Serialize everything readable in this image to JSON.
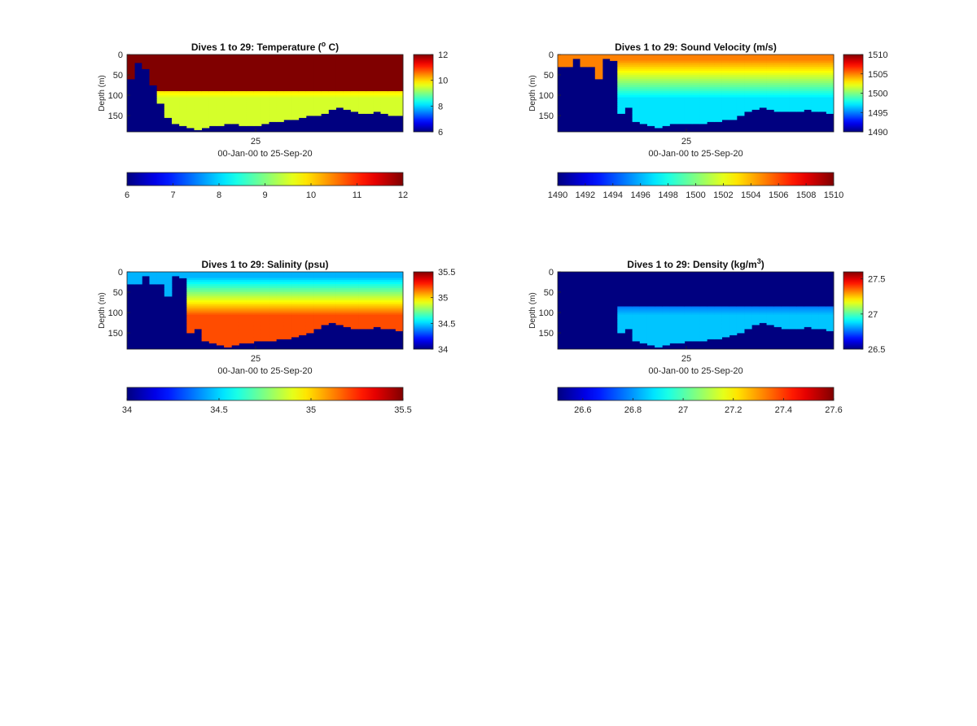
{
  "chart_data": [
    {
      "type": "heatmap",
      "title": "Dives 1 to 29: Temperature (",
      "title_sup": "o",
      "title_tail": " C)",
      "ylabel": "Depth (m)",
      "xlabel": "00-Jan-00 to 25-Sep-20",
      "x_ticks": [
        "25"
      ],
      "y_ticks": [
        "0",
        "50",
        "100",
        "150"
      ],
      "y_tick_values": [
        0,
        50,
        100,
        150
      ],
      "ylim": [
        0,
        190
      ],
      "colormap": "jet",
      "side_colorbar": {
        "range": [
          6,
          12
        ],
        "ticks": [
          "12",
          "10",
          "8",
          "6"
        ],
        "tick_values": [
          12,
          10,
          8,
          6
        ]
      },
      "bottom_colorbar": {
        "range": [
          6,
          12
        ],
        "ticks": [
          "6",
          "7",
          "8",
          "9",
          "10",
          "11",
          "12"
        ],
        "tick_values": [
          6,
          7,
          8,
          9,
          10,
          11,
          12
        ]
      },
      "columns": 37,
      "bottom_depth": [
        60,
        20,
        35,
        75,
        120,
        155,
        170,
        175,
        180,
        185,
        178,
        175,
        172,
        170,
        170,
        172,
        175,
        172,
        168,
        165,
        162,
        160,
        158,
        155,
        150,
        148,
        145,
        135,
        130,
        135,
        140,
        142,
        145,
        140,
        142,
        148,
        150
      ],
      "dive_start_column": 2,
      "surface_value": 12,
      "deep_value": 9.5
    },
    {
      "type": "heatmap",
      "title": "Dives 1 to 29: Sound Velocity (m/s)",
      "ylabel": "Depth (m)",
      "xlabel": "00-Jan-00 to 25-Sep-20",
      "x_ticks": [
        "25"
      ],
      "y_ticks": [
        "0",
        "50",
        "100",
        "150"
      ],
      "y_tick_values": [
        0,
        50,
        100,
        150
      ],
      "ylim": [
        0,
        190
      ],
      "colormap": "jet",
      "side_colorbar": {
        "range": [
          1490,
          1510
        ],
        "ticks": [
          "1510",
          "1505",
          "1500",
          "1495",
          "1490"
        ],
        "tick_values": [
          1510,
          1505,
          1500,
          1495,
          1490
        ]
      },
      "bottom_colorbar": {
        "range": [
          1490,
          1510
        ],
        "ticks": [
          "1490",
          "1492",
          "1494",
          "1496",
          "1498",
          "1500",
          "1502",
          "1504",
          "1506",
          "1508",
          "1510"
        ],
        "tick_values": [
          1490,
          1492,
          1494,
          1496,
          1498,
          1500,
          1502,
          1504,
          1506,
          1508,
          1510
        ]
      },
      "columns": 37,
      "bottom_depth": [
        30,
        30,
        10,
        28,
        28,
        60,
        10,
        15,
        145,
        130,
        165,
        170,
        175,
        180,
        172,
        170,
        168,
        168,
        170,
        168,
        165,
        162,
        160,
        158,
        150,
        140,
        135,
        130,
        135,
        140,
        140,
        138,
        140,
        135,
        138,
        140,
        142
      ],
      "dive_start_column": 8,
      "surface_value": 1505,
      "deep_value": 1497
    },
    {
      "type": "heatmap",
      "title": "Dives 1 to 29: Salinity (psu)",
      "ylabel": "Depth (m)",
      "xlabel": "00-Jan-00 to 25-Sep-20",
      "x_ticks": [
        "25"
      ],
      "y_ticks": [
        "0",
        "50",
        "100",
        "150"
      ],
      "y_tick_values": [
        0,
        50,
        100,
        150
      ],
      "ylim": [
        0,
        190
      ],
      "colormap": "jet",
      "side_colorbar": {
        "range": [
          34,
          35.5
        ],
        "ticks": [
          "35.5",
          "35",
          "34.5",
          "34"
        ],
        "tick_values": [
          35.5,
          35,
          34.5,
          34
        ]
      },
      "bottom_colorbar": {
        "range": [
          34,
          35.5
        ],
        "ticks": [
          "34",
          "34.5",
          "35",
          "35.5"
        ],
        "tick_values": [
          34,
          34.5,
          35,
          35.5
        ]
      },
      "columns": 37,
      "bottom_depth": [
        30,
        30,
        10,
        28,
        28,
        60,
        10,
        15,
        150,
        140,
        170,
        175,
        180,
        185,
        178,
        175,
        172,
        170,
        170,
        168,
        165,
        162,
        158,
        155,
        150,
        140,
        130,
        125,
        128,
        135,
        140,
        138,
        140,
        135,
        138,
        140,
        142
      ],
      "dive_start_column": 8,
      "surface_value": 34.45,
      "deep_value": 35.2
    },
    {
      "type": "heatmap",
      "title": "Dives 1 to 29: Density (kg/m",
      "title_sup": "3",
      "title_tail": ")",
      "ylabel": "Depth (m)",
      "xlabel": "00-Jan-00 to 25-Sep-20",
      "x_ticks": [
        "25"
      ],
      "y_ticks": [
        "0",
        "50",
        "100",
        "150"
      ],
      "y_tick_values": [
        0,
        50,
        100,
        150
      ],
      "ylim": [
        0,
        190
      ],
      "colormap": "jet",
      "side_colorbar": {
        "range": [
          26.5,
          27.6
        ],
        "ticks": [
          "27.5",
          "27",
          "26.5"
        ],
        "tick_values": [
          27.5,
          27,
          26.5
        ]
      },
      "bottom_colorbar": {
        "range": [
          26.5,
          27.6
        ],
        "ticks": [
          "26.6",
          "26.8",
          "27",
          "27.2",
          "27.4",
          "27.6"
        ],
        "tick_values": [
          26.6,
          26.8,
          27,
          27.2,
          27.4,
          27.6
        ]
      },
      "columns": 37,
      "bottom_depth": [
        30,
        30,
        10,
        28,
        28,
        60,
        10,
        15,
        150,
        140,
        170,
        175,
        180,
        185,
        178,
        175,
        172,
        170,
        170,
        168,
        165,
        162,
        158,
        155,
        150,
        140,
        130,
        125,
        128,
        135,
        140,
        138,
        140,
        135,
        138,
        140,
        142
      ],
      "dive_start_column": 8,
      "surface_value": 26.5,
      "deep_value": 26.85
    }
  ]
}
